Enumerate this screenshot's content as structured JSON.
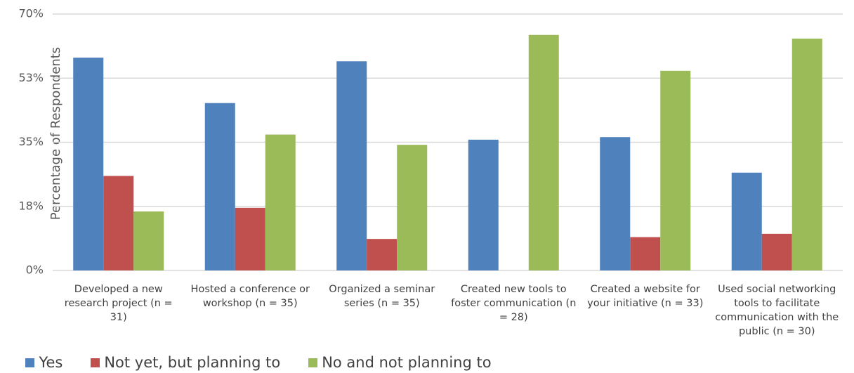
{
  "chart_data": {
    "type": "bar",
    "y_label": "Percentage of Respondents",
    "categories": [
      "Developed a new research project (n = 31)",
      "Hosted a conference or workshop (n = 35)",
      "Organized a seminar series (n = 35)",
      "Created new tools to foster communication (n = 28)",
      "Created a website for your initiative (n = 33)",
      "Used social networking tools to facilitate communication with the public (n = 30)"
    ],
    "series": [
      {
        "name": "Yes",
        "color": "#4f81bd",
        "values": [
          58.1,
          45.7,
          57.1,
          35.7,
          36.4,
          26.7
        ]
      },
      {
        "name": "Not yet, but planning to",
        "color": "#c0504d",
        "values": [
          25.8,
          17.1,
          8.6,
          0,
          9.1,
          10.0
        ]
      },
      {
        "name": "No and not planning to",
        "color": "#9bbb59",
        "values": [
          16.1,
          37.1,
          34.3,
          64.3,
          54.5,
          63.3
        ]
      }
    ],
    "ylim": [
      0,
      70
    ],
    "yticks": [
      {
        "value": 0,
        "label": "0%"
      },
      {
        "value": 17.5,
        "label": "18%"
      },
      {
        "value": 35,
        "label": "35%"
      },
      {
        "value": 52.5,
        "label": "53%"
      },
      {
        "value": 70,
        "label": "70%"
      }
    ],
    "grid": true,
    "legend": "bottom"
  }
}
